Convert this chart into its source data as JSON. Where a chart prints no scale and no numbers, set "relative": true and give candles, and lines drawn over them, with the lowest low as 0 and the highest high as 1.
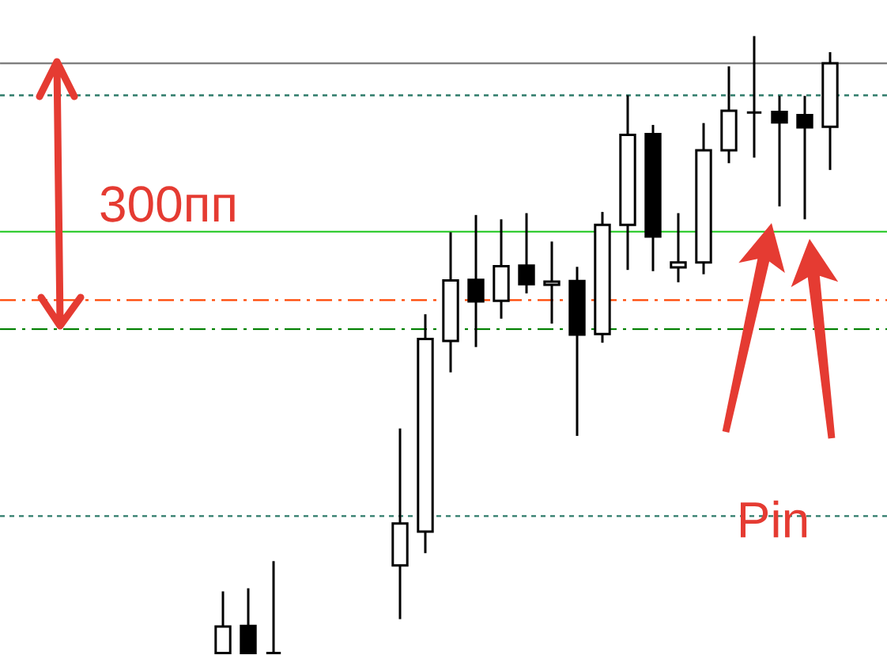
{
  "chart_data": {
    "type": "candlestick",
    "relative": true,
    "categories": [
      null,
      null,
      null,
      null,
      null,
      null,
      null,
      null,
      null,
      null,
      null,
      null,
      null,
      null,
      null,
      null,
      null,
      null,
      null,
      null,
      null,
      null,
      null,
      null,
      null
    ],
    "ohlc": [
      [
        0,
        0.1,
        0,
        0.043
      ],
      [
        0.044,
        0.105,
        0,
        0
      ],
      [
        0,
        0.149,
        0,
        0
      ],
      null,
      null,
      null,
      null,
      [
        0.142,
        0.364,
        0.055,
        0.21
      ],
      [
        0.197,
        0.549,
        0.162,
        0.509
      ],
      [
        0.506,
        0.682,
        0.455,
        0.604
      ],
      [
        0.605,
        0.71,
        0.496,
        0.57
      ],
      [
        0.571,
        0.703,
        0.542,
        0.627
      ],
      [
        0.628,
        0.713,
        0.583,
        0.598
      ],
      [
        0.597,
        0.667,
        0.534,
        0.602
      ],
      [
        0.603,
        0.626,
        0.352,
        0.516
      ],
      [
        0.517,
        0.715,
        0.503,
        0.694
      ],
      [
        0.694,
        0.904,
        0.621,
        0.84
      ],
      [
        0.841,
        0.856,
        0.619,
        0.675
      ],
      [
        0.625,
        0.713,
        0.601,
        0.633
      ],
      [
        0.633,
        0.859,
        0.614,
        0.815
      ],
      [
        0.815,
        0.951,
        0.794,
        0.879
      ],
      [
        0.876,
        1.0,
        0.803,
        0.876
      ],
      [
        0.877,
        0.903,
        0.724,
        0.86
      ],
      [
        0.872,
        0.903,
        0.703,
        0.852
      ],
      [
        0.853,
        0.974,
        0.783,
        0.956
      ]
    ],
    "ref_lines": [
      {
        "axis": "y",
        "value": 0.956,
        "color": "#808080",
        "line_style": "solid"
      },
      {
        "axis": "y",
        "value": 0.904,
        "color": "#2e7b6a",
        "line_style": "dotted"
      },
      {
        "axis": "y",
        "value": 0.683,
        "color": "#33cc33",
        "line_style": "solid"
      },
      {
        "axis": "y",
        "value": 0.572,
        "color": "#ff4500",
        "line_style": "dashdot"
      },
      {
        "axis": "y",
        "value": 0.525,
        "color": "#008000",
        "line_style": "dashdot"
      },
      {
        "axis": "y",
        "value": 0.222,
        "color": "#2e7b6a",
        "line_style": "dotted"
      }
    ],
    "annotations": [
      "300пп",
      "Pin"
    ]
  }
}
